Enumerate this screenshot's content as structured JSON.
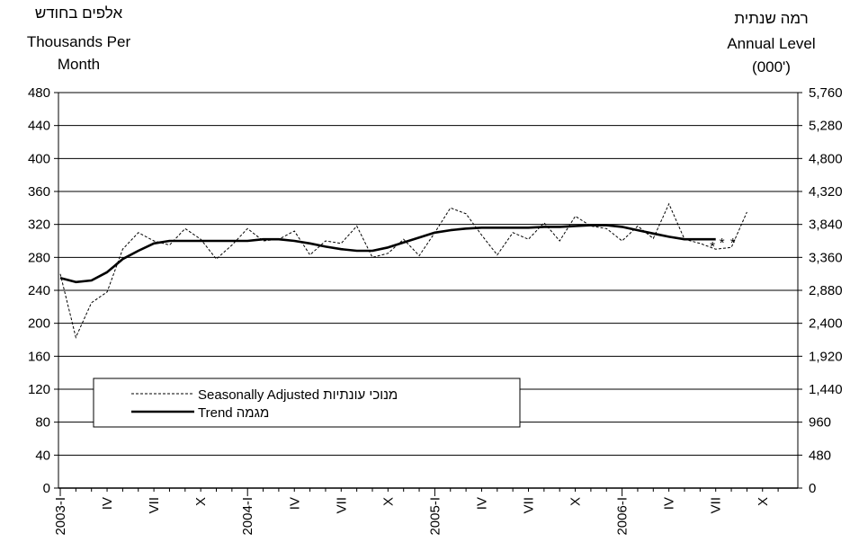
{
  "chart_data": {
    "type": "line",
    "left_axis_title": {
      "hebrew": "אלפים בחודש",
      "english_line1": "Thousands Per",
      "english_line2": "Month"
    },
    "right_axis_title": {
      "hebrew": "רמה שנתית",
      "english_line1": "Annual Level",
      "english_line2": "(000')"
    },
    "ylim": [
      0,
      480
    ],
    "y_ticks": [
      0,
      40,
      80,
      120,
      160,
      200,
      240,
      280,
      320,
      360,
      400,
      440,
      480
    ],
    "y2_ticks": [
      "0",
      "480",
      "960",
      "1,440",
      "1,920",
      "2,400",
      "2,880",
      "3,360",
      "3,840",
      "4,320",
      "4,800",
      "5,280",
      "5,760"
    ],
    "x_ticks": [
      "2003-I",
      "IV",
      "VII",
      "X",
      "2004-I",
      "IV",
      "VII",
      "X",
      "2005-I",
      "IV",
      "VII",
      "X",
      "2006-I",
      "IV",
      "VII",
      "X"
    ],
    "grid": true,
    "legend": [
      {
        "label": "Seasonally Adjusted מנוכי עונתיות",
        "style": "dashed"
      },
      {
        "label": "Trend מגמה",
        "style": "solid"
      }
    ],
    "series": [
      {
        "name": "Seasonally Adjusted",
        "x": [
          0,
          1,
          2,
          3,
          4,
          5,
          6,
          7,
          8,
          9,
          10,
          11,
          12,
          13,
          14,
          15,
          16,
          17,
          18,
          19,
          20,
          21,
          22,
          23,
          24,
          25,
          26,
          27,
          28,
          29,
          30,
          31,
          32,
          33,
          34,
          35,
          36,
          37,
          38,
          39,
          40,
          41,
          42,
          43,
          44
        ],
        "values": [
          260,
          183,
          225,
          238,
          290,
          310,
          300,
          295,
          315,
          302,
          278,
          295,
          315,
          300,
          302,
          312,
          283,
          300,
          297,
          318,
          280,
          285,
          302,
          282,
          310,
          340,
          333,
          307,
          283,
          310,
          302,
          322,
          300,
          330,
          318,
          315,
          300,
          318,
          303,
          345,
          302,
          297,
          290,
          292,
          335
        ]
      },
      {
        "name": "Trend",
        "x": [
          0,
          1,
          2,
          3,
          4,
          5,
          6,
          7,
          8,
          9,
          10,
          11,
          12,
          13,
          14,
          15,
          16,
          17,
          18,
          19,
          20,
          21,
          22,
          23,
          24,
          25,
          26,
          27,
          28,
          29,
          30,
          31,
          32,
          33,
          34,
          35,
          36,
          37,
          38,
          39,
          40,
          41,
          42
        ],
        "values": [
          255,
          250,
          252,
          262,
          278,
          288,
          297,
          300,
          300,
          300,
          300,
          300,
          300,
          302,
          302,
          300,
          297,
          293,
          290,
          288,
          288,
          292,
          298,
          304,
          310,
          313,
          315,
          316,
          316,
          316,
          316,
          317,
          317,
          318,
          319,
          319,
          317,
          313,
          309,
          305,
          302,
          302,
          302
        ]
      }
    ],
    "forecast_markers": {
      "symbol": "*",
      "x": [
        41.8,
        42.4,
        43.1
      ],
      "values": [
        298,
        302,
        302
      ]
    }
  }
}
